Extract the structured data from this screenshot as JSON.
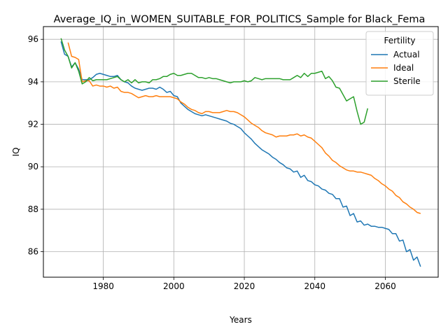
{
  "chart_data": {
    "type": "line",
    "title": "Average_IQ_in_WOMEN_SUITABLE_FOR_POLITICS_Sample for Black_Fema",
    "xlabel": "Years",
    "ylabel": "IQ",
    "xlim": [
      1963,
      2075
    ],
    "ylim": [
      84.8,
      96.6
    ],
    "xticks": [
      1980,
      2000,
      2020,
      2040,
      2060
    ],
    "yticks": [
      86,
      88,
      90,
      92,
      94,
      96
    ],
    "grid": true,
    "legend": {
      "title": "Fertility",
      "position": "top-right"
    },
    "series": [
      {
        "name": "Actual",
        "color": "#1f77b4",
        "points": [
          [
            1968,
            95.9
          ],
          [
            1969,
            95.3
          ],
          [
            1970,
            95.2
          ],
          [
            1971,
            94.7
          ],
          [
            1972,
            94.9
          ],
          [
            1973,
            94.6
          ],
          [
            1974,
            94.1
          ],
          [
            1975,
            94.1
          ],
          [
            1976,
            94.1
          ],
          [
            1977,
            94.2
          ],
          [
            1978,
            94.35
          ],
          [
            1979,
            94.4
          ],
          [
            1980,
            94.35
          ],
          [
            1981,
            94.3
          ],
          [
            1982,
            94.25
          ],
          [
            1983,
            94.25
          ],
          [
            1984,
            94.3
          ],
          [
            1985,
            94.1
          ],
          [
            1986,
            94.0
          ],
          [
            1987,
            93.95
          ],
          [
            1988,
            93.8
          ],
          [
            1989,
            93.7
          ],
          [
            1990,
            93.65
          ],
          [
            1991,
            93.6
          ],
          [
            1992,
            93.65
          ],
          [
            1993,
            93.7
          ],
          [
            1994,
            93.7
          ],
          [
            1995,
            93.65
          ],
          [
            1996,
            93.75
          ],
          [
            1997,
            93.65
          ],
          [
            1998,
            93.5
          ],
          [
            1999,
            93.55
          ],
          [
            2000,
            93.35
          ],
          [
            2001,
            93.3
          ],
          [
            2002,
            93.0
          ],
          [
            2003,
            92.85
          ],
          [
            2004,
            92.7
          ],
          [
            2005,
            92.6
          ],
          [
            2006,
            92.5
          ],
          [
            2007,
            92.45
          ],
          [
            2008,
            92.4
          ],
          [
            2009,
            92.45
          ],
          [
            2010,
            92.4
          ],
          [
            2011,
            92.35
          ],
          [
            2012,
            92.3
          ],
          [
            2013,
            92.25
          ],
          [
            2014,
            92.2
          ],
          [
            2015,
            92.15
          ],
          [
            2016,
            92.05
          ],
          [
            2017,
            92.0
          ],
          [
            2018,
            91.9
          ],
          [
            2019,
            91.8
          ],
          [
            2020,
            91.6
          ],
          [
            2021,
            91.45
          ],
          [
            2022,
            91.3
          ],
          [
            2023,
            91.1
          ],
          [
            2024,
            90.95
          ],
          [
            2025,
            90.8
          ],
          [
            2026,
            90.7
          ],
          [
            2027,
            90.6
          ],
          [
            2028,
            90.45
          ],
          [
            2029,
            90.35
          ],
          [
            2030,
            90.2
          ],
          [
            2031,
            90.1
          ],
          [
            2032,
            89.95
          ],
          [
            2033,
            89.9
          ],
          [
            2034,
            89.75
          ],
          [
            2035,
            89.8
          ],
          [
            2036,
            89.5
          ],
          [
            2037,
            89.6
          ],
          [
            2038,
            89.35
          ],
          [
            2039,
            89.3
          ],
          [
            2040,
            89.15
          ],
          [
            2041,
            89.1
          ],
          [
            2042,
            88.95
          ],
          [
            2043,
            88.9
          ],
          [
            2044,
            88.75
          ],
          [
            2045,
            88.7
          ],
          [
            2046,
            88.5
          ],
          [
            2047,
            88.5
          ],
          [
            2048,
            88.1
          ],
          [
            2049,
            88.15
          ],
          [
            2050,
            87.7
          ],
          [
            2051,
            87.8
          ],
          [
            2052,
            87.4
          ],
          [
            2053,
            87.45
          ],
          [
            2054,
            87.25
          ],
          [
            2055,
            87.3
          ],
          [
            2056,
            87.2
          ],
          [
            2057,
            87.2
          ],
          [
            2058,
            87.15
          ],
          [
            2059,
            87.15
          ],
          [
            2060,
            87.1
          ],
          [
            2061,
            87.05
          ],
          [
            2062,
            86.85
          ],
          [
            2063,
            86.85
          ],
          [
            2064,
            86.5
          ],
          [
            2065,
            86.55
          ],
          [
            2066,
            86.0
          ],
          [
            2067,
            86.1
          ],
          [
            2068,
            85.6
          ],
          [
            2069,
            85.75
          ],
          [
            2070,
            85.3
          ]
        ]
      },
      {
        "name": "Ideal",
        "color": "#ff7f0e",
        "points": [
          [
            1970,
            95.85
          ],
          [
            1971,
            95.2
          ],
          [
            1972,
            95.15
          ],
          [
            1973,
            95.05
          ],
          [
            1974,
            94.0
          ],
          [
            1975,
            94.05
          ],
          [
            1976,
            94.05
          ],
          [
            1977,
            93.8
          ],
          [
            1978,
            93.85
          ],
          [
            1979,
            93.8
          ],
          [
            1980,
            93.8
          ],
          [
            1981,
            93.75
          ],
          [
            1982,
            93.8
          ],
          [
            1983,
            93.7
          ],
          [
            1984,
            93.75
          ],
          [
            1985,
            93.55
          ],
          [
            1986,
            93.5
          ],
          [
            1987,
            93.5
          ],
          [
            1988,
            93.45
          ],
          [
            1989,
            93.35
          ],
          [
            1990,
            93.25
          ],
          [
            1991,
            93.3
          ],
          [
            1992,
            93.35
          ],
          [
            1993,
            93.3
          ],
          [
            1994,
            93.3
          ],
          [
            1995,
            93.35
          ],
          [
            1996,
            93.3
          ],
          [
            1997,
            93.3
          ],
          [
            1998,
            93.3
          ],
          [
            1999,
            93.3
          ],
          [
            2000,
            93.25
          ],
          [
            2001,
            93.2
          ],
          [
            2002,
            93.05
          ],
          [
            2003,
            92.95
          ],
          [
            2004,
            92.8
          ],
          [
            2005,
            92.7
          ],
          [
            2006,
            92.65
          ],
          [
            2007,
            92.55
          ],
          [
            2008,
            92.5
          ],
          [
            2009,
            92.6
          ],
          [
            2010,
            92.6
          ],
          [
            2011,
            92.55
          ],
          [
            2012,
            92.55
          ],
          [
            2013,
            92.55
          ],
          [
            2014,
            92.6
          ],
          [
            2015,
            92.65
          ],
          [
            2016,
            92.6
          ],
          [
            2017,
            92.6
          ],
          [
            2018,
            92.55
          ],
          [
            2019,
            92.45
          ],
          [
            2020,
            92.35
          ],
          [
            2021,
            92.2
          ],
          [
            2022,
            92.05
          ],
          [
            2023,
            91.95
          ],
          [
            2024,
            91.85
          ],
          [
            2025,
            91.7
          ],
          [
            2026,
            91.6
          ],
          [
            2027,
            91.55
          ],
          [
            2028,
            91.5
          ],
          [
            2029,
            91.4
          ],
          [
            2030,
            91.45
          ],
          [
            2031,
            91.45
          ],
          [
            2032,
            91.45
          ],
          [
            2033,
            91.5
          ],
          [
            2034,
            91.5
          ],
          [
            2035,
            91.55
          ],
          [
            2036,
            91.45
          ],
          [
            2037,
            91.5
          ],
          [
            2038,
            91.4
          ],
          [
            2039,
            91.35
          ],
          [
            2040,
            91.2
          ],
          [
            2041,
            91.05
          ],
          [
            2042,
            90.9
          ],
          [
            2043,
            90.65
          ],
          [
            2044,
            90.5
          ],
          [
            2045,
            90.3
          ],
          [
            2046,
            90.2
          ],
          [
            2047,
            90.05
          ],
          [
            2048,
            89.95
          ],
          [
            2049,
            89.85
          ],
          [
            2050,
            89.8
          ],
          [
            2051,
            89.8
          ],
          [
            2052,
            89.75
          ],
          [
            2053,
            89.75
          ],
          [
            2054,
            89.7
          ],
          [
            2055,
            89.65
          ],
          [
            2056,
            89.6
          ],
          [
            2057,
            89.45
          ],
          [
            2058,
            89.35
          ],
          [
            2059,
            89.2
          ],
          [
            2060,
            89.1
          ],
          [
            2061,
            88.95
          ],
          [
            2062,
            88.85
          ],
          [
            2063,
            88.65
          ],
          [
            2064,
            88.55
          ],
          [
            2065,
            88.35
          ],
          [
            2066,
            88.25
          ],
          [
            2067,
            88.1
          ],
          [
            2068,
            88.0
          ],
          [
            2069,
            87.85
          ],
          [
            2070,
            87.8
          ]
        ]
      },
      {
        "name": "Sterile",
        "color": "#2ca02c",
        "points": [
          [
            1968,
            96.05
          ],
          [
            1969,
            95.5
          ],
          [
            1970,
            95.2
          ],
          [
            1971,
            94.65
          ],
          [
            1972,
            94.9
          ],
          [
            1973,
            94.5
          ],
          [
            1974,
            93.9
          ],
          [
            1975,
            94.0
          ],
          [
            1976,
            94.2
          ],
          [
            1977,
            94.05
          ],
          [
            1978,
            94.1
          ],
          [
            1979,
            94.1
          ],
          [
            1980,
            94.1
          ],
          [
            1981,
            94.1
          ],
          [
            1982,
            94.15
          ],
          [
            1983,
            94.2
          ],
          [
            1984,
            94.25
          ],
          [
            1985,
            94.1
          ],
          [
            1986,
            94.0
          ],
          [
            1987,
            94.1
          ],
          [
            1988,
            93.95
          ],
          [
            1989,
            94.1
          ],
          [
            1990,
            93.95
          ],
          [
            1991,
            94.0
          ],
          [
            1992,
            94.0
          ],
          [
            1993,
            93.95
          ],
          [
            1994,
            94.1
          ],
          [
            1995,
            94.1
          ],
          [
            1996,
            94.15
          ],
          [
            1997,
            94.25
          ],
          [
            1998,
            94.25
          ],
          [
            1999,
            94.35
          ],
          [
            2000,
            94.4
          ],
          [
            2001,
            94.3
          ],
          [
            2002,
            94.3
          ],
          [
            2003,
            94.35
          ],
          [
            2004,
            94.4
          ],
          [
            2005,
            94.4
          ],
          [
            2006,
            94.3
          ],
          [
            2007,
            94.2
          ],
          [
            2008,
            94.2
          ],
          [
            2009,
            94.15
          ],
          [
            2010,
            94.2
          ],
          [
            2011,
            94.15
          ],
          [
            2012,
            94.15
          ],
          [
            2013,
            94.1
          ],
          [
            2014,
            94.05
          ],
          [
            2015,
            94.0
          ],
          [
            2016,
            93.95
          ],
          [
            2017,
            94.0
          ],
          [
            2018,
            94.0
          ],
          [
            2019,
            94.0
          ],
          [
            2020,
            94.05
          ],
          [
            2021,
            94.0
          ],
          [
            2022,
            94.05
          ],
          [
            2023,
            94.2
          ],
          [
            2024,
            94.15
          ],
          [
            2025,
            94.1
          ],
          [
            2026,
            94.15
          ],
          [
            2027,
            94.15
          ],
          [
            2028,
            94.15
          ],
          [
            2029,
            94.15
          ],
          [
            2030,
            94.15
          ],
          [
            2031,
            94.1
          ],
          [
            2032,
            94.1
          ],
          [
            2033,
            94.1
          ],
          [
            2034,
            94.2
          ],
          [
            2035,
            94.3
          ],
          [
            2036,
            94.2
          ],
          [
            2037,
            94.4
          ],
          [
            2038,
            94.25
          ],
          [
            2039,
            94.4
          ],
          [
            2040,
            94.4
          ],
          [
            2041,
            94.45
          ],
          [
            2042,
            94.5
          ],
          [
            2043,
            94.15
          ],
          [
            2044,
            94.25
          ],
          [
            2045,
            94.05
          ],
          [
            2046,
            93.75
          ],
          [
            2047,
            93.7
          ],
          [
            2048,
            93.4
          ],
          [
            2049,
            93.1
          ],
          [
            2050,
            93.2
          ],
          [
            2051,
            93.3
          ],
          [
            2052,
            92.6
          ],
          [
            2053,
            92.0
          ],
          [
            2054,
            92.1
          ],
          [
            2055,
            92.75
          ]
        ]
      }
    ]
  }
}
